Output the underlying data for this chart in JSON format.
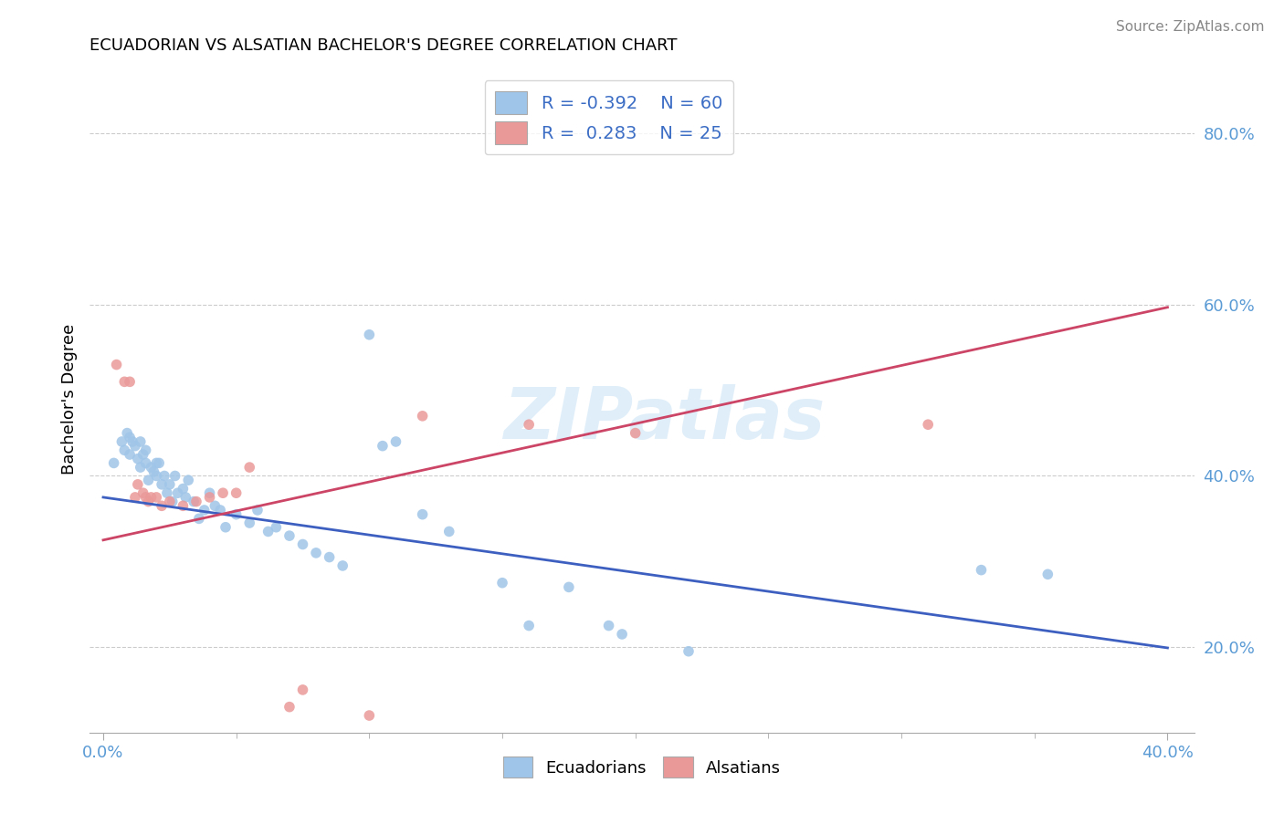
{
  "title": "ECUADORIAN VS ALSATIAN BACHELOR'S DEGREE CORRELATION CHART",
  "source": "Source: ZipAtlas.com",
  "ylabel_label": "Bachelor's Degree",
  "xlim": [
    -0.005,
    0.41
  ],
  "ylim": [
    0.1,
    0.88
  ],
  "y_ticks": [
    0.2,
    0.4,
    0.6,
    0.8
  ],
  "y_tick_labels": [
    "20.0%",
    "40.0%",
    "60.0%",
    "80.0%"
  ],
  "blue_color": "#9fc5e8",
  "pink_color": "#ea9999",
  "blue_line_color": "#3d5fc0",
  "pink_line_color": "#cc4466",
  "watermark_text": "ZIPatlas",
  "blue_intercept": 0.375,
  "blue_slope": -0.44,
  "pink_intercept": 0.325,
  "pink_slope": 0.68,
  "ecuadorian_x": [
    0.004,
    0.007,
    0.008,
    0.009,
    0.01,
    0.01,
    0.011,
    0.012,
    0.013,
    0.014,
    0.014,
    0.015,
    0.016,
    0.016,
    0.017,
    0.018,
    0.019,
    0.02,
    0.02,
    0.021,
    0.022,
    0.023,
    0.024,
    0.025,
    0.026,
    0.027,
    0.028,
    0.03,
    0.031,
    0.032,
    0.034,
    0.036,
    0.038,
    0.04,
    0.042,
    0.044,
    0.046,
    0.05,
    0.055,
    0.058,
    0.062,
    0.065,
    0.07,
    0.075,
    0.08,
    0.085,
    0.09,
    0.1,
    0.105,
    0.11,
    0.12,
    0.13,
    0.15,
    0.16,
    0.175,
    0.19,
    0.195,
    0.22,
    0.33,
    0.355
  ],
  "ecuadorian_y": [
    0.415,
    0.44,
    0.43,
    0.45,
    0.445,
    0.425,
    0.44,
    0.435,
    0.42,
    0.44,
    0.41,
    0.425,
    0.43,
    0.415,
    0.395,
    0.41,
    0.405,
    0.415,
    0.4,
    0.415,
    0.39,
    0.4,
    0.38,
    0.39,
    0.37,
    0.4,
    0.38,
    0.385,
    0.375,
    0.395,
    0.37,
    0.35,
    0.36,
    0.38,
    0.365,
    0.36,
    0.34,
    0.355,
    0.345,
    0.36,
    0.335,
    0.34,
    0.33,
    0.32,
    0.31,
    0.305,
    0.295,
    0.565,
    0.435,
    0.44,
    0.355,
    0.335,
    0.275,
    0.225,
    0.27,
    0.225,
    0.215,
    0.195,
    0.29,
    0.285
  ],
  "alsatian_x": [
    0.005,
    0.008,
    0.01,
    0.012,
    0.013,
    0.015,
    0.016,
    0.017,
    0.018,
    0.02,
    0.022,
    0.025,
    0.03,
    0.035,
    0.04,
    0.045,
    0.05,
    0.055,
    0.07,
    0.075,
    0.1,
    0.12,
    0.16,
    0.2,
    0.31
  ],
  "alsatian_y": [
    0.53,
    0.51,
    0.51,
    0.375,
    0.39,
    0.38,
    0.375,
    0.37,
    0.375,
    0.375,
    0.365,
    0.37,
    0.365,
    0.37,
    0.375,
    0.38,
    0.38,
    0.41,
    0.13,
    0.15,
    0.12,
    0.47,
    0.46,
    0.45,
    0.46
  ]
}
